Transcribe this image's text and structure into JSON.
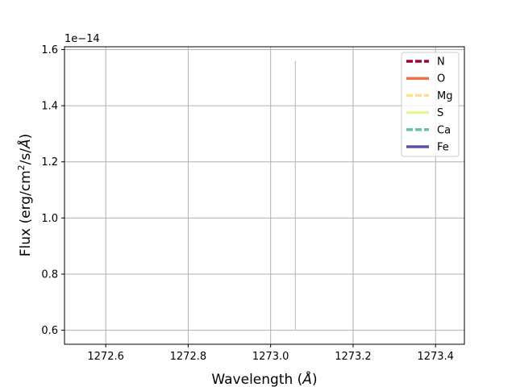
{
  "chart_data": {
    "type": "line",
    "xlabel_main": "Wavelength (",
    "xlabel_unit": "Å",
    "xlabel_close": ")",
    "ylabel_main": "Flux (erg/cm",
    "ylabel_sup": "2",
    "ylabel_rest": "/s/",
    "ylabel_unit": "Å",
    "ylabel_close": ")",
    "y_offset_text": "1e−14",
    "xlim": [
      1272.5,
      1273.47
    ],
    "ylim": [
      0.55,
      1.61
    ],
    "x_ticks": [
      1272.6,
      1272.8,
      1273.0,
      1273.2,
      1273.4
    ],
    "x_tick_labels": [
      "1272.6",
      "1272.8",
      "1273.0",
      "1273.2",
      "1273.4"
    ],
    "y_ticks": [
      0.6,
      0.8,
      1.0,
      1.2,
      1.4,
      1.6
    ],
    "y_tick_labels": [
      "0.6",
      "0.8",
      "1.0",
      "1.2",
      "1.4",
      "1.6"
    ],
    "grid": true,
    "legend_position": "top-right",
    "series": [
      {
        "name": "N",
        "color": "#9e0142",
        "dash": "dashed",
        "x": [],
        "y": []
      },
      {
        "name": "O",
        "color": "#f46d43",
        "dash": "solid",
        "x": [],
        "y": []
      },
      {
        "name": "Mg",
        "color": "#fee08b",
        "dash": "dashed",
        "x": [],
        "y": []
      },
      {
        "name": "S",
        "color": "#e6f598",
        "dash": "solid",
        "x": [],
        "y": []
      },
      {
        "name": "Ca",
        "color": "#66c2a5",
        "dash": "dashed",
        "x": [],
        "y": []
      },
      {
        "name": "Fe",
        "color": "#5e4fa2",
        "dash": "solid",
        "x": [],
        "y": []
      }
    ],
    "vertical_line": {
      "x": 1273.06,
      "y_from": 0.6,
      "y_to": 1.56,
      "color": "#c0c0c0"
    }
  }
}
